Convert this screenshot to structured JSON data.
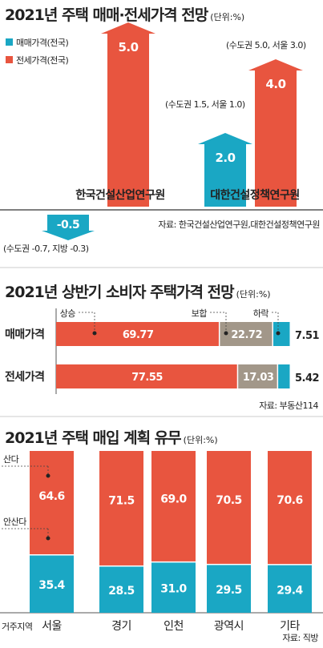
{
  "colors": {
    "red": "#e8553f",
    "teal": "#1aa7c4",
    "gray": "#a29789",
    "axis": "#555555"
  },
  "chart_data": [
    {
      "type": "bar",
      "title": "2021년 주택 매매·전세가격 전망",
      "unit": "(단위:%)",
      "legend": [
        "매매가격(전국)",
        "전세가격(전국)"
      ],
      "categories": [
        "한국건설산업연구원",
        "대한건설정책연구원"
      ],
      "series": [
        {
          "name": "매매가격(전국)",
          "values": [
            -0.5,
            2.0
          ],
          "labels": [
            "-0.5",
            "2.0"
          ]
        },
        {
          "name": "전세가격(전국)",
          "values": [
            5.0,
            4.0
          ],
          "labels": [
            "5.0",
            "4.0"
          ]
        }
      ],
      "annotations": {
        "kcir_sale": "(수도권 -0.7, 지방 -0.3)",
        "kcpi_sale": "(수도권 1.5, 서울 1.0)",
        "kcpi_jeonse": "(수도권 5.0, 서울 3.0)"
      },
      "source": "자료: 한국건설산업연구원,대한건설정책연구원"
    },
    {
      "type": "bar",
      "title": "2021년 상반기 소비자 주택가격 전망",
      "unit": "(단위:%)",
      "legend": [
        "상승",
        "보합",
        "하락"
      ],
      "categories": [
        "매매가격",
        "전세가격"
      ],
      "series": [
        {
          "name": "상승",
          "values": [
            69.77,
            77.55
          ],
          "labels": [
            "69.77",
            "77.55"
          ]
        },
        {
          "name": "보합",
          "values": [
            22.72,
            17.03
          ],
          "labels": [
            "22.72",
            "17.03"
          ]
        },
        {
          "name": "하락",
          "values": [
            7.51,
            5.42
          ],
          "labels": [
            "7.51",
            "5.42"
          ]
        }
      ],
      "source": "자료: 부동산114"
    },
    {
      "type": "bar",
      "title": "2021년 주택 매입 계획 유무",
      "unit": "(단위:%)",
      "legend": [
        "산다",
        "안산다"
      ],
      "xlabel": "거주지역",
      "categories": [
        "서울",
        "경기",
        "인천",
        "광역시",
        "기타"
      ],
      "series": [
        {
          "name": "산다",
          "values": [
            64.6,
            71.5,
            69.0,
            70.5,
            70.6
          ],
          "labels": [
            "64.6",
            "71.5",
            "69.0",
            "70.5",
            "70.6"
          ]
        },
        {
          "name": "안산다",
          "values": [
            35.4,
            28.5,
            31.0,
            29.5,
            29.4
          ],
          "labels": [
            "35.4",
            "28.5",
            "31.0",
            "29.5",
            "29.4"
          ]
        }
      ],
      "source": "자료: 직방"
    }
  ]
}
